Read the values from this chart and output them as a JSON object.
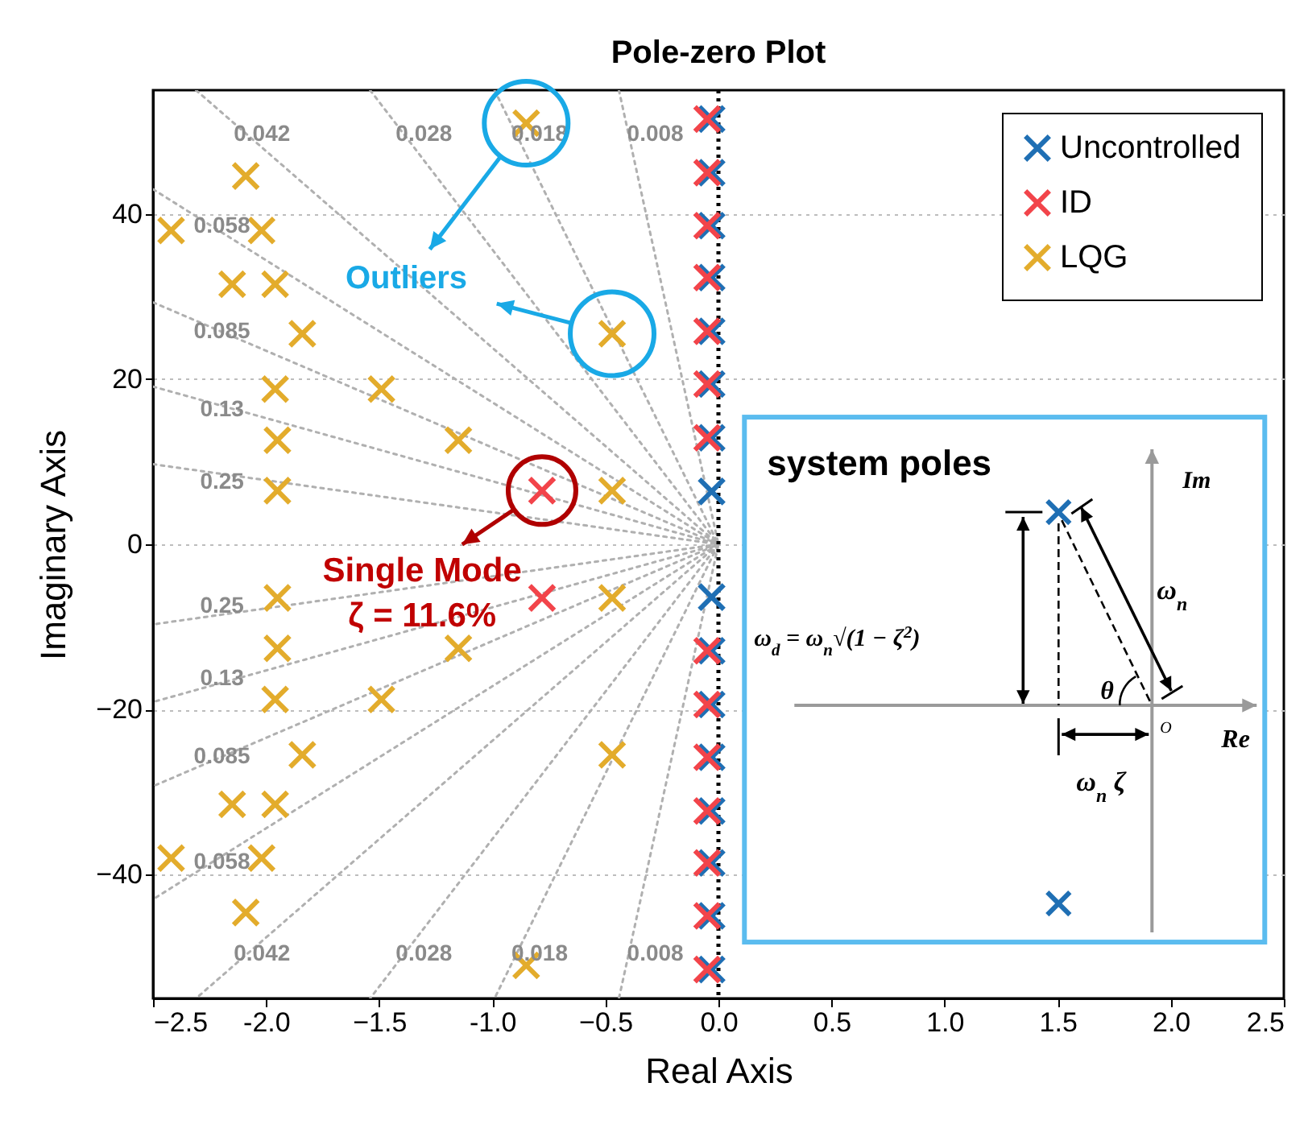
{
  "chart_data": {
    "type": "scatter",
    "title": "Pole-zero Plot",
    "xlabel": "Real Axis",
    "ylabel": "Imaginary Axis",
    "xlim": [
      -2.5,
      2.5
    ],
    "ylim": [
      -55,
      55
    ],
    "xticks": [
      -2.5,
      {
        "value": -2,
        "label": "-2.0"
      },
      -1.5,
      {
        "value": -1,
        "label": "-1.0"
      },
      -0.5,
      {
        "value": 0,
        "label": "0.0"
      },
      0.5,
      {
        "value": 1,
        "label": "1.0"
      },
      1.5,
      {
        "value": 2,
        "label": "2.0"
      },
      2.5
    ],
    "yticks": [
      -40,
      -20,
      0,
      20,
      40
    ],
    "grid": "y",
    "legend": "top right",
    "marker": "cross",
    "line_style": "dotted",
    "series": [
      {
        "type": "line",
        "name": "0.008",
        "marker": "none",
        "color": "#b0b0b0",
        "x": [
          -0.44,
          0,
          -0.44
        ],
        "values": [
          55,
          0,
          -55
        ]
      },
      {
        "type": "line",
        "name": "0.018",
        "marker": "none",
        "color": "#b0b0b0",
        "x": [
          -0.99,
          0,
          -0.99
        ],
        "values": [
          55,
          0,
          -55
        ]
      },
      {
        "type": "line",
        "name": "0.028",
        "marker": "none",
        "color": "#b0b0b0",
        "x": [
          -1.54,
          0,
          -1.54
        ],
        "values": [
          55,
          0,
          -55
        ]
      },
      {
        "type": "line",
        "name": "0.042",
        "marker": "none",
        "color": "#b0b0b0",
        "x": [
          -2.31,
          0,
          -2.31
        ],
        "values": [
          55,
          0,
          -55
        ]
      },
      {
        "type": "line",
        "name": "0.058",
        "marker": "none",
        "color": "#b0b0b0",
        "x": [
          -2.5,
          0,
          -2.5
        ],
        "values": [
          43,
          0,
          -43
        ]
      },
      {
        "type": "line",
        "name": "0.085",
        "marker": "none",
        "color": "#b0b0b0",
        "x": [
          -2.5,
          0,
          -2.5
        ],
        "values": [
          29.3,
          0,
          -29.3
        ]
      },
      {
        "type": "line",
        "name": "0.13",
        "marker": "none",
        "color": "#b0b0b0",
        "x": [
          -2.5,
          0,
          -2.5
        ],
        "values": [
          19.1,
          0,
          -19.1
        ]
      },
      {
        "type": "line",
        "name": "0.25",
        "marker": "none",
        "color": "#b0b0b0",
        "x": [
          -2.5,
          0,
          -2.5
        ],
        "values": [
          9.7,
          0,
          -9.7
        ]
      },
      {
        "name": "Uncontrolled",
        "color": "#1f6fb4",
        "x": [
          -0.03,
          -0.03,
          -0.03,
          -0.03,
          -0.03,
          -0.03,
          -0.03,
          -0.03,
          -0.03,
          -0.03,
          -0.03,
          -0.03,
          -0.03,
          -0.03,
          -0.03,
          -0.03
        ],
        "values": [
          6.4,
          12.9,
          19.4,
          25.8,
          32.3,
          38.6,
          45,
          51.5,
          -6.4,
          -12.9,
          -19.4,
          -25.8,
          -32.3,
          -38.6,
          -45,
          -51.5
        ]
      },
      {
        "name": "ID",
        "color": "#f2444a",
        "x": [
          -0.78,
          -0.78,
          -0.05,
          -0.05,
          -0.05,
          -0.05,
          -0.05,
          -0.05,
          -0.05,
          -0.05,
          -0.05,
          -0.05,
          -0.05,
          -0.05,
          -0.05,
          -0.05
        ],
        "values": [
          6.5,
          -6.5,
          12.9,
          19.4,
          25.8,
          32.3,
          38.6,
          45,
          51.5,
          -12.9,
          -19.4,
          -25.8,
          -32.3,
          -38.6,
          -45,
          -51.5
        ]
      },
      {
        "name": "LQG",
        "color": "#e3ac2c",
        "x": [
          -2.42,
          -2.09,
          -2.02,
          -2.15,
          -1.96,
          -1.84,
          -1.96,
          -1.49,
          -1.95,
          -1.15,
          -1.95,
          -0.47,
          -0.47,
          -0.85,
          -2.42,
          -2.09,
          -2.02,
          -2.15,
          -1.96,
          -1.84,
          -1.96,
          -1.49,
          -1.95,
          -1.15,
          -1.95,
          -0.47,
          -0.47,
          -0.85
        ],
        "values": [
          38,
          44.6,
          38,
          31.5,
          31.5,
          25.5,
          18.8,
          18.8,
          12.6,
          12.6,
          6.5,
          6.5,
          25.5,
          51,
          -38,
          -44.6,
          -38,
          -31.5,
          -31.5,
          -25.5,
          -18.8,
          -18.8,
          -12.6,
          -12.6,
          -6.5,
          -6.5,
          -25.5,
          -51
        ]
      }
    ],
    "ref_lines": [
      {
        "axis": "x",
        "value": 0,
        "color": "#000000",
        "line_style": "dotted"
      }
    ],
    "annotations": [
      "Outliers",
      "Single Mode",
      "ζ = 11.6%",
      "system poles",
      "Im",
      "Re",
      "O",
      "ω$_{n}$",
      "ω$_{d}$ = ω$_{n}$√(1 − ζ$^{2}$)",
      "θ",
      "ω$_{n}$ ζ"
    ]
  }
}
